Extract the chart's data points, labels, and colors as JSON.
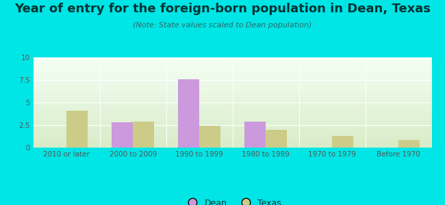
{
  "title": "Year of entry for the foreign-born population in Dean, Texas",
  "subtitle": "(Note: State values scaled to Dean population)",
  "categories": [
    "2010 or later",
    "2000 to 2009",
    "1990 to 1999",
    "1980 to 1989",
    "1970 to 1979",
    "Before 1970"
  ],
  "dean_values": [
    0,
    2.8,
    7.6,
    2.9,
    0,
    0
  ],
  "texas_values": [
    4.1,
    2.9,
    2.4,
    2.0,
    1.3,
    0.8
  ],
  "dean_color": "#cc99dd",
  "texas_color": "#cccc88",
  "background_color": "#00e5e5",
  "plot_bg_top": "#f5fff5",
  "plot_bg_bottom": "#d8ecc8",
  "ylim": [
    0,
    10
  ],
  "yticks": [
    0,
    2.5,
    5,
    7.5,
    10
  ],
  "bar_width": 0.32,
  "legend_dean": "Dean",
  "legend_texas": "Texas",
  "title_fontsize": 13,
  "subtitle_fontsize": 8,
  "tick_fontsize": 7.5,
  "legend_fontsize": 9,
  "title_color": "#003333",
  "subtitle_color": "#336666",
  "tick_color": "#555555"
}
